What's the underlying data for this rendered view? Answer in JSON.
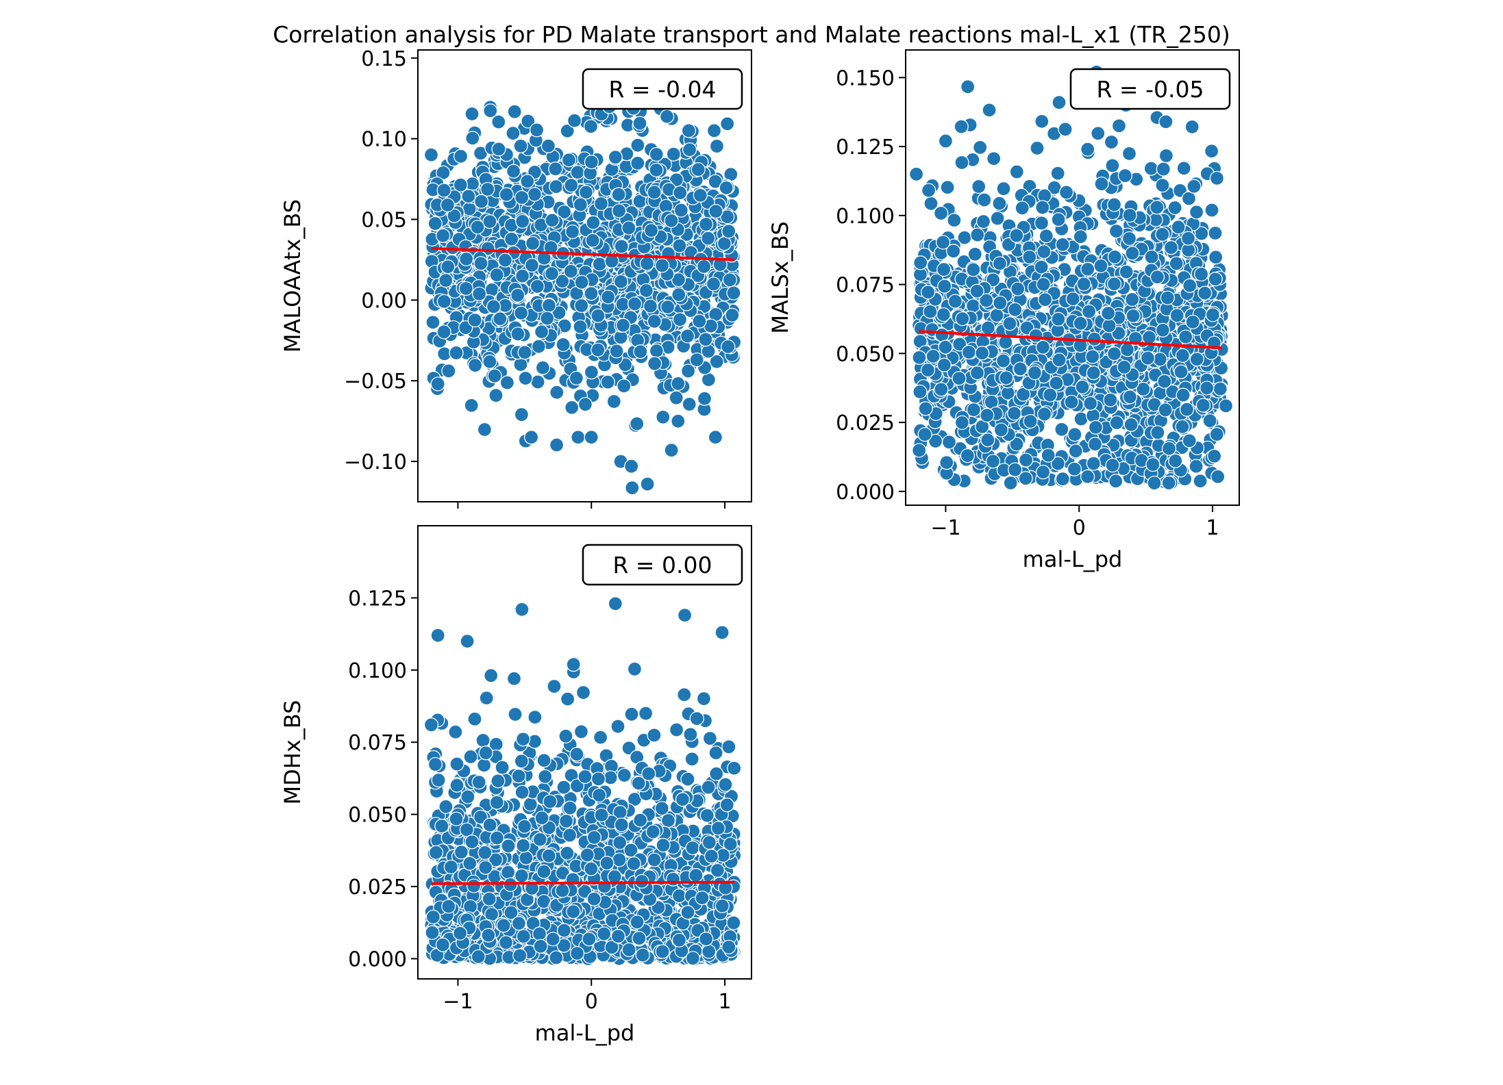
{
  "figure": {
    "title": "Correlation analysis for PD Malate transport and  Malate reactions mal-L_x1 (TR_250)"
  },
  "colors": {
    "points": "#1f77b4",
    "point_edge": "#ffffff",
    "fit_line": "#ff0000",
    "axes": "#000000",
    "background": "#ffffff"
  },
  "chart_data": [
    {
      "type": "scatter",
      "panel": "top-left",
      "xlabel": "",
      "ylabel": "MALOAAtx_BS",
      "xlim": [
        -1.3,
        1.2
      ],
      "ylim": [
        -0.125,
        0.155
      ],
      "xticks": [
        -1,
        0,
        1
      ],
      "show_xtick_labels": false,
      "yticks": [
        -0.1,
        -0.05,
        0.0,
        0.05,
        0.1,
        0.15
      ],
      "ytick_labels": [
        "−0.10",
        "−0.05",
        "0.00",
        "0.05",
        "0.10",
        "0.15"
      ],
      "annotation": "R = -0.04",
      "annotation_position": "top-right",
      "fit_line": {
        "x": [
          -1.2,
          1.07
        ],
        "y": [
          0.032,
          0.025
        ]
      },
      "cloud": {
        "x_range": [
          -1.2,
          1.07
        ],
        "y_center": 0.029,
        "y_spread": 0.038,
        "n": 1600,
        "y_min": -0.12,
        "y_max": 0.12
      },
      "outliers": [
        {
          "x": -0.45,
          "y": -0.085
        },
        {
          "x": -0.1,
          "y": -0.085
        },
        {
          "x": 0.0,
          "y": -0.085
        },
        {
          "x": 0.22,
          "y": -0.1
        },
        {
          "x": 0.3,
          "y": -0.103
        },
        {
          "x": 0.42,
          "y": -0.114
        },
        {
          "x": 0.6,
          "y": -0.093
        },
        {
          "x": 0.93,
          "y": -0.085
        },
        {
          "x": -1.15,
          "y": -0.052
        },
        {
          "x": 0.73,
          "y": 0.105
        },
        {
          "x": 0.92,
          "y": 0.105
        },
        {
          "x": -1.2,
          "y": 0.09
        }
      ],
      "legend": "none",
      "grid": false
    },
    {
      "type": "scatter",
      "panel": "top-right",
      "xlabel": "mal-L_pd",
      "ylabel": "MALSx_BS",
      "xlim": [
        -1.3,
        1.2
      ],
      "ylim": [
        -0.005,
        0.16
      ],
      "xticks": [
        -1,
        0,
        1
      ],
      "xtick_labels": [
        "−1",
        "0",
        "1"
      ],
      "yticks": [
        0.0,
        0.025,
        0.05,
        0.075,
        0.1,
        0.125,
        0.15
      ],
      "ytick_labels": [
        "0.000",
        "0.025",
        "0.050",
        "0.075",
        "0.100",
        "0.125",
        "0.150"
      ],
      "annotation": "R = -0.05",
      "annotation_position": "top-right",
      "fit_line": {
        "x": [
          -1.2,
          1.07
        ],
        "y": [
          0.058,
          0.052
        ]
      },
      "cloud": {
        "x_range": [
          -1.2,
          1.07
        ],
        "y_center": 0.055,
        "y_spread": 0.03,
        "n": 1600,
        "y_min": 0.003,
        "y_max": 0.152
      },
      "outliers": [
        {
          "x": -1.22,
          "y": 0.115
        },
        {
          "x": -1.0,
          "y": 0.127
        },
        {
          "x": -0.15,
          "y": 0.141
        },
        {
          "x": 0.13,
          "y": 0.152
        },
        {
          "x": 0.35,
          "y": 0.14
        },
        {
          "x": 0.65,
          "y": 0.134
        },
        {
          "x": 1.1,
          "y": 0.031
        },
        {
          "x": -1.15,
          "y": 0.03
        }
      ],
      "legend": "none",
      "grid": false
    },
    {
      "type": "scatter",
      "panel": "bottom-left",
      "xlabel": "mal-L_pd",
      "ylabel": "MDHx_BS",
      "xlim": [
        -1.3,
        1.2
      ],
      "ylim": [
        -0.007,
        0.15
      ],
      "xticks": [
        -1,
        0,
        1
      ],
      "xtick_labels": [
        "−1",
        "0",
        "1"
      ],
      "yticks": [
        0.0,
        0.025,
        0.05,
        0.075,
        0.1,
        0.125
      ],
      "ytick_labels": [
        "0.000",
        "0.025",
        "0.050",
        "0.075",
        "0.100",
        "0.125"
      ],
      "annotation": "R = 0.00",
      "annotation_position": "top-right",
      "fit_line": {
        "x": [
          -1.2,
          1.07
        ],
        "y": [
          0.026,
          0.0265
        ]
      },
      "cloud": {
        "x_range": [
          -1.2,
          1.07
        ],
        "y_center": 0.02,
        "y_spread": 0.028,
        "n": 1600,
        "y_min": 0.0,
        "y_max": 0.123
      },
      "outliers": [
        {
          "x": -1.15,
          "y": 0.112
        },
        {
          "x": -0.93,
          "y": 0.11
        },
        {
          "x": -0.52,
          "y": 0.121
        },
        {
          "x": 0.18,
          "y": 0.123
        },
        {
          "x": 0.7,
          "y": 0.119
        },
        {
          "x": 0.98,
          "y": 0.113
        },
        {
          "x": -1.2,
          "y": 0.081
        },
        {
          "x": 1.07,
          "y": 0.066
        }
      ],
      "legend": "none",
      "grid": false
    }
  ]
}
